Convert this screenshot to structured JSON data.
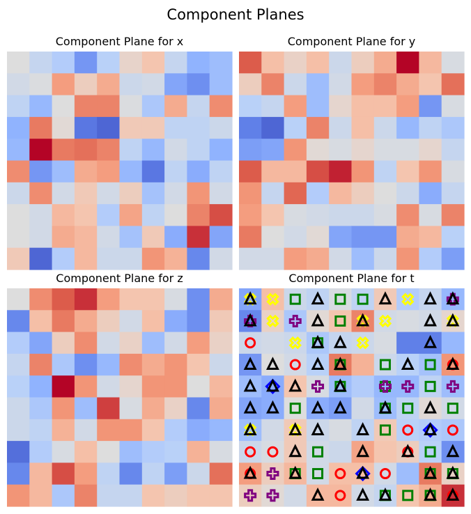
{
  "figure_title": "Component Planes",
  "colormap": "coolwarm",
  "chart_data": [
    {
      "type": "heatmap",
      "title": "Component Plane for x",
      "grid": false,
      "axes": "off",
      "z": [
        [
          0.5,
          0.42,
          0.36,
          0.18,
          0.38,
          0.55,
          0.62,
          0.42,
          0.26,
          0.3
        ],
        [
          0.46,
          0.49,
          0.74,
          0.58,
          0.7,
          0.44,
          0.46,
          0.22,
          0.16,
          0.3
        ],
        [
          0.4,
          0.28,
          0.5,
          0.8,
          0.8,
          0.49,
          0.34,
          0.7,
          0.42,
          0.78
        ],
        [
          0.26,
          0.82,
          0.52,
          0.1,
          0.06,
          0.6,
          0.6,
          0.4,
          0.4,
          0.44
        ],
        [
          0.28,
          1.0,
          0.82,
          0.84,
          0.8,
          0.4,
          0.28,
          0.46,
          0.4,
          0.26
        ],
        [
          0.78,
          0.18,
          0.3,
          0.7,
          0.74,
          0.28,
          0.1,
          0.4,
          0.24,
          0.4
        ],
        [
          0.44,
          0.78,
          0.46,
          0.6,
          0.46,
          0.58,
          0.32,
          0.46,
          0.76,
          0.46
        ],
        [
          0.5,
          0.46,
          0.66,
          0.62,
          0.36,
          0.72,
          0.4,
          0.5,
          0.8,
          0.9
        ],
        [
          0.5,
          0.46,
          0.7,
          0.66,
          0.46,
          0.32,
          0.6,
          0.24,
          0.94,
          0.22
        ],
        [
          0.6,
          0.06,
          0.36,
          0.66,
          0.44,
          0.44,
          0.76,
          0.68,
          0.14,
          0.46
        ]
      ]
    },
    {
      "type": "heatmap",
      "title": "Component Plane for y",
      "grid": false,
      "axes": "off",
      "z": [
        [
          0.88,
          0.64,
          0.56,
          0.64,
          0.44,
          0.58,
          0.7,
          1.0,
          0.66,
          0.48
        ],
        [
          0.58,
          0.8,
          0.44,
          0.3,
          0.46,
          0.74,
          0.8,
          0.7,
          0.62,
          0.84
        ],
        [
          0.38,
          0.42,
          0.74,
          0.3,
          0.54,
          0.64,
          0.64,
          0.74,
          0.18,
          0.48
        ],
        [
          0.12,
          0.06,
          0.38,
          0.8,
          0.44,
          0.64,
          0.44,
          0.28,
          0.4,
          0.34
        ],
        [
          0.2,
          0.22,
          0.76,
          0.52,
          0.48,
          0.54,
          0.48,
          0.48,
          0.54,
          0.42
        ],
        [
          0.88,
          0.66,
          0.66,
          0.9,
          0.96,
          0.76,
          0.4,
          0.62,
          0.76,
          0.48
        ],
        [
          0.76,
          0.42,
          0.86,
          0.36,
          0.66,
          0.58,
          0.5,
          0.44,
          0.24,
          0.42
        ],
        [
          0.74,
          0.62,
          0.48,
          0.46,
          0.44,
          0.44,
          0.48,
          0.78,
          0.48,
          0.8
        ],
        [
          0.82,
          0.5,
          0.46,
          0.52,
          0.22,
          0.18,
          0.18,
          0.7,
          0.66,
          0.38
        ],
        [
          0.46,
          0.46,
          0.74,
          0.7,
          0.46,
          0.3,
          0.44,
          0.76,
          0.36,
          0.2
        ]
      ]
    },
    {
      "type": "heatmap",
      "title": "Component Plane for z",
      "grid": false,
      "axes": "off",
      "z": [
        [
          0.5,
          0.78,
          0.88,
          0.94,
          0.74,
          0.62,
          0.62,
          0.48,
          0.16,
          0.7
        ],
        [
          0.14,
          0.64,
          0.82,
          0.7,
          0.58,
          0.46,
          0.64,
          0.24,
          0.16,
          0.6
        ],
        [
          0.36,
          0.22,
          0.58,
          0.78,
          0.46,
          0.56,
          0.3,
          0.46,
          0.74,
          0.56
        ],
        [
          0.42,
          0.8,
          0.34,
          0.16,
          0.28,
          0.78,
          0.7,
          0.76,
          0.62,
          0.44
        ],
        [
          0.38,
          0.26,
          1.0,
          0.76,
          0.46,
          0.54,
          0.76,
          0.76,
          0.5,
          0.66
        ],
        [
          0.44,
          0.34,
          0.76,
          0.3,
          0.92,
          0.48,
          0.7,
          0.56,
          0.14,
          0.7
        ],
        [
          0.44,
          0.4,
          0.68,
          0.46,
          0.76,
          0.76,
          0.62,
          0.36,
          0.24,
          0.28
        ],
        [
          0.08,
          0.36,
          0.48,
          0.64,
          0.5,
          0.3,
          0.36,
          0.38,
          0.68,
          0.48
        ],
        [
          0.14,
          0.66,
          0.9,
          0.74,
          0.4,
          0.14,
          0.4,
          0.2,
          0.44,
          0.84
        ],
        [
          0.76,
          0.66,
          0.34,
          0.8,
          0.42,
          0.42,
          0.62,
          0.58,
          0.62,
          0.62
        ]
      ]
    },
    {
      "type": "heatmap",
      "title": "Component Plane for t",
      "grid": false,
      "axes": "off",
      "z": [
        [
          0.22,
          0.64,
          0.44,
          0.4,
          0.48,
          0.4,
          0.6,
          0.36,
          0.42,
          0.28
        ],
        [
          0.14,
          0.56,
          0.34,
          0.52,
          0.62,
          0.8,
          0.46,
          0.48,
          0.46,
          0.54
        ],
        [
          0.44,
          0.46,
          0.44,
          0.34,
          0.42,
          0.44,
          0.48,
          0.12,
          0.12,
          0.28
        ],
        [
          0.18,
          0.5,
          0.46,
          0.38,
          0.82,
          0.68,
          0.44,
          0.38,
          0.32,
          0.76
        ],
        [
          0.3,
          0.24,
          0.62,
          0.48,
          0.3,
          0.36,
          0.28,
          0.28,
          0.4,
          0.3
        ],
        [
          0.22,
          0.24,
          0.5,
          0.24,
          0.2,
          0.46,
          0.3,
          0.4,
          0.52,
          0.46
        ],
        [
          0.3,
          0.46,
          0.6,
          0.44,
          0.48,
          0.4,
          0.6,
          0.38,
          0.36,
          0.34
        ],
        [
          0.44,
          0.48,
          0.6,
          0.46,
          0.44,
          0.72,
          0.62,
          0.58,
          0.38,
          0.16
        ],
        [
          0.74,
          0.58,
          0.66,
          0.46,
          0.64,
          0.64,
          0.46,
          0.3,
          0.82,
          0.56
        ],
        [
          0.58,
          0.52,
          0.46,
          0.66,
          0.66,
          0.46,
          0.42,
          0.62,
          0.7,
          0.94
        ]
      ],
      "marker_colors": {
        "^": "#000000",
        "s": "#008000",
        "o": "#ff0000",
        "D": "#0000ff",
        "P": "#800080",
        "X": "#ffff00"
      },
      "markers": [
        [
          "X^",
          "X",
          "s",
          "^",
          "s",
          "s",
          "^",
          "X",
          "^",
          "^P"
        ],
        [
          "^P",
          "X",
          "P",
          "^",
          "s",
          "^X",
          "X",
          "",
          "^",
          "^X"
        ],
        [
          "o",
          "",
          "X",
          "s^",
          "^",
          "X",
          "",
          "",
          "^",
          ""
        ],
        [
          "^",
          "^",
          "o",
          "^",
          "s^",
          "",
          "s",
          "^",
          "s",
          "^o"
        ],
        [
          "^",
          "D^",
          "^",
          "P",
          "s^",
          "",
          "sP",
          "P",
          "s",
          "P"
        ],
        [
          "^",
          "^",
          "s",
          "^",
          "^",
          "",
          "s^",
          "s",
          "^",
          "s"
        ],
        [
          "X^",
          "",
          "X^",
          "^",
          "",
          "^",
          "s",
          "o",
          "D^",
          "o"
        ],
        [
          "o",
          "o",
          "^",
          "s",
          "",
          "^",
          "",
          "o^",
          "s",
          "^"
        ],
        [
          "o^",
          "P",
          "s^",
          "s",
          "o",
          "D^",
          "o",
          "",
          "s^",
          "s^"
        ],
        [
          "P",
          "P",
          "",
          "^",
          "o",
          "^",
          "s^",
          "s",
          "s^",
          "o^"
        ]
      ]
    }
  ]
}
